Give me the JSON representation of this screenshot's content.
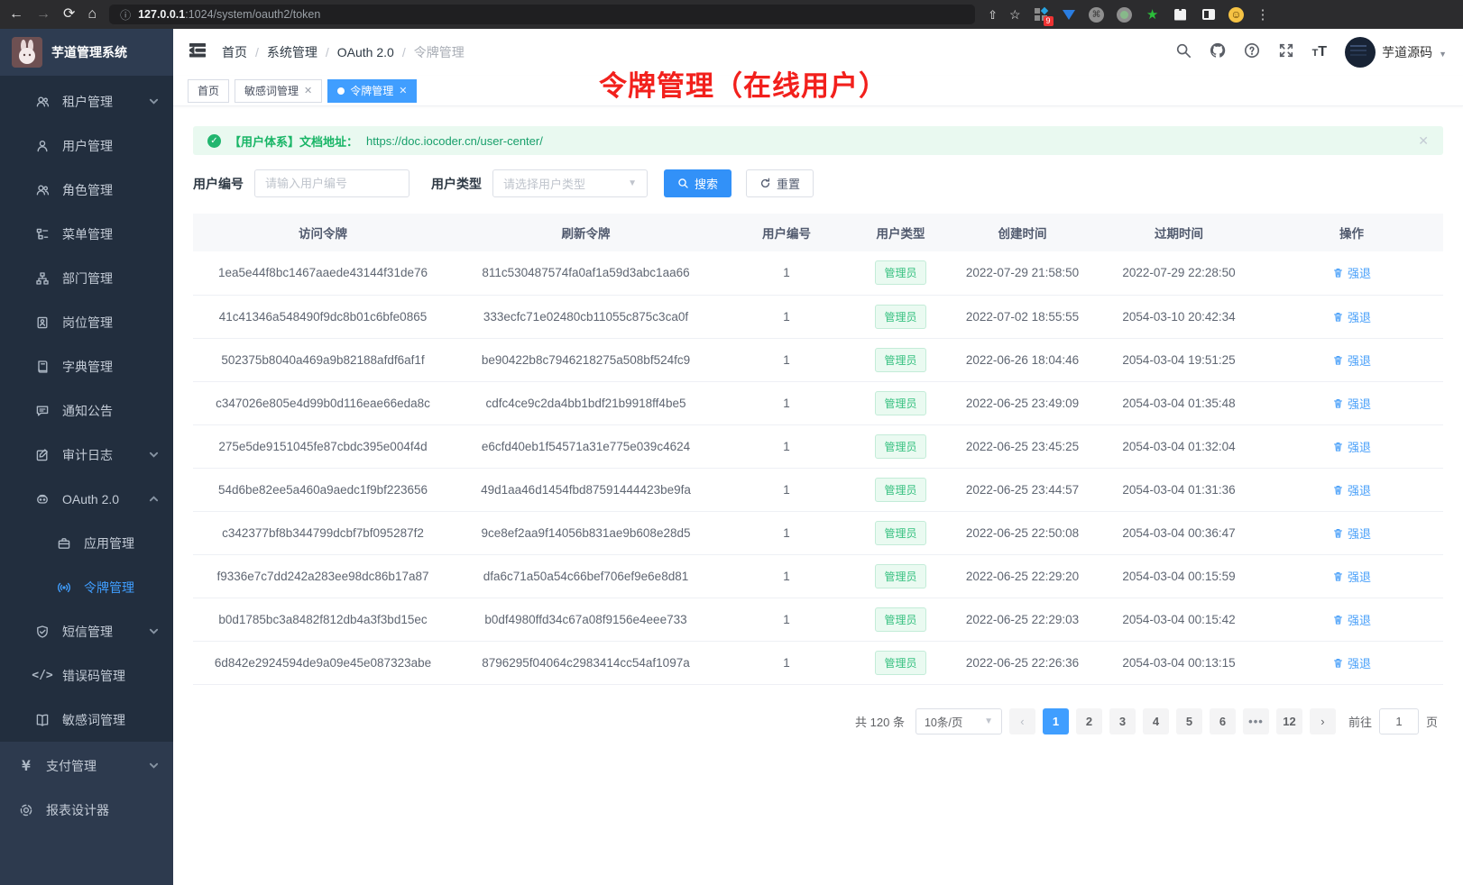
{
  "browser": {
    "url_host": "127.0.0.1",
    "url_rest": ":1024/system/oauth2/token",
    "extension_badge": "9"
  },
  "sidebar": {
    "logo_title": "芋道管理系统",
    "items": [
      {
        "label": "租户管理",
        "icon": "tenant-users-icon",
        "arrow": "down",
        "level": 1
      },
      {
        "label": "用户管理",
        "icon": "user-icon",
        "level": 1
      },
      {
        "label": "角色管理",
        "icon": "roles-icon",
        "level": 1
      },
      {
        "label": "菜单管理",
        "icon": "menu-tree-icon",
        "level": 1
      },
      {
        "label": "部门管理",
        "icon": "org-chart-icon",
        "level": 1
      },
      {
        "label": "岗位管理",
        "icon": "post-badge-icon",
        "level": 1
      },
      {
        "label": "字典管理",
        "icon": "dictionary-icon",
        "level": 1
      },
      {
        "label": "通知公告",
        "icon": "announcement-icon",
        "level": 1
      },
      {
        "label": "审计日志",
        "icon": "audit-log-icon",
        "arrow": "down",
        "level": 1
      },
      {
        "label": "OAuth 2.0",
        "icon": "oauth-robot-icon",
        "arrow": "up",
        "level": 1
      },
      {
        "label": "应用管理",
        "icon": "app-briefcase-icon",
        "level": 2
      },
      {
        "label": "令牌管理",
        "icon": "token-broadcast-icon",
        "level": 2,
        "active": true
      },
      {
        "label": "短信管理",
        "icon": "sms-shield-icon",
        "arrow": "down",
        "level": 1
      },
      {
        "label": "错误码管理",
        "icon": "error-code-icon",
        "level": 1
      },
      {
        "label": "敏感词管理",
        "icon": "sensitive-word-icon",
        "level": 1
      },
      {
        "label": "支付管理",
        "icon": "payment-yen-icon",
        "arrow": "down",
        "level": 0,
        "section": "root"
      },
      {
        "label": "报表设计器",
        "icon": "report-designer-icon",
        "level": 0,
        "section": "root"
      }
    ]
  },
  "header": {
    "breadcrumb": [
      "首页",
      "系统管理",
      "OAuth 2.0",
      "令牌管理"
    ],
    "username": "芋道源码"
  },
  "tabs": [
    {
      "label": "首页",
      "closable": false,
      "active": false
    },
    {
      "label": "敏感词管理",
      "closable": true,
      "active": false
    },
    {
      "label": "令牌管理",
      "closable": true,
      "active": true
    }
  ],
  "annotation": "令牌管理（在线用户）",
  "alert": {
    "text": "【用户体系】文档地址：",
    "link": "https://doc.iocoder.cn/user-center/"
  },
  "filters": {
    "user_id_label": "用户编号",
    "user_id_placeholder": "请输入用户编号",
    "user_type_label": "用户类型",
    "user_type_placeholder": "请选择用户类型",
    "search_label": "搜索",
    "reset_label": "重置"
  },
  "table": {
    "columns": [
      "访问令牌",
      "刷新令牌",
      "用户编号",
      "用户类型",
      "创建时间",
      "过期时间",
      "操作"
    ],
    "action_label": "强退",
    "rows": [
      {
        "access_token": "1ea5e44f8bc1467aaede43144f31de76",
        "refresh_token": "811c530487574fa0af1a59d3abc1aa66",
        "user_id": "1",
        "user_type": "管理员",
        "create_time": "2022-07-29 21:58:50",
        "expire_time": "2022-07-29 22:28:50"
      },
      {
        "access_token": "41c41346a548490f9dc8b01c6bfe0865",
        "refresh_token": "333ecfc71e02480cb11055c875c3ca0f",
        "user_id": "1",
        "user_type": "管理员",
        "create_time": "2022-07-02 18:55:55",
        "expire_time": "2054-03-10 20:42:34"
      },
      {
        "access_token": "502375b8040a469a9b82188afdf6af1f",
        "refresh_token": "be90422b8c7946218275a508bf524fc9",
        "user_id": "1",
        "user_type": "管理员",
        "create_time": "2022-06-26 18:04:46",
        "expire_time": "2054-03-04 19:51:25"
      },
      {
        "access_token": "c347026e805e4d99b0d116eae66eda8c",
        "refresh_token": "cdfc4ce9c2da4bb1bdf21b9918ff4be5",
        "user_id": "1",
        "user_type": "管理员",
        "create_time": "2022-06-25 23:49:09",
        "expire_time": "2054-03-04 01:35:48"
      },
      {
        "access_token": "275e5de9151045fe87cbdc395e004f4d",
        "refresh_token": "e6cfd40eb1f54571a31e775e039c4624",
        "user_id": "1",
        "user_type": "管理员",
        "create_time": "2022-06-25 23:45:25",
        "expire_time": "2054-03-04 01:32:04"
      },
      {
        "access_token": "54d6be82ee5a460a9aedc1f9bf223656",
        "refresh_token": "49d1aa46d1454fbd87591444423be9fa",
        "user_id": "1",
        "user_type": "管理员",
        "create_time": "2022-06-25 23:44:57",
        "expire_time": "2054-03-04 01:31:36"
      },
      {
        "access_token": "c342377bf8b344799dcbf7bf095287f2",
        "refresh_token": "9ce8ef2aa9f14056b831ae9b608e28d5",
        "user_id": "1",
        "user_type": "管理员",
        "create_time": "2022-06-25 22:50:08",
        "expire_time": "2054-03-04 00:36:47"
      },
      {
        "access_token": "f9336e7c7dd242a283ee98dc86b17a87",
        "refresh_token": "dfa6c71a50a54c66bef706ef9e6e8d81",
        "user_id": "1",
        "user_type": "管理员",
        "create_time": "2022-06-25 22:29:20",
        "expire_time": "2054-03-04 00:15:59"
      },
      {
        "access_token": "b0d1785bc3a8482f812db4a3f3bd15ec",
        "refresh_token": "b0df4980ffd34c67a08f9156e4eee733",
        "user_id": "1",
        "user_type": "管理员",
        "create_time": "2022-06-25 22:29:03",
        "expire_time": "2054-03-04 00:15:42"
      },
      {
        "access_token": "6d842e2924594de9a09e45e087323abe",
        "refresh_token": "8796295f04064c2983414cc54af1097a",
        "user_id": "1",
        "user_type": "管理员",
        "create_time": "2022-06-25 22:26:36",
        "expire_time": "2054-03-04 00:13:15"
      }
    ]
  },
  "pagination": {
    "total": "共 120 条",
    "page_size": "10条/页",
    "pages": [
      "1",
      "2",
      "3",
      "4",
      "5",
      "6",
      "...",
      "12"
    ],
    "active_page": "1",
    "goto_label": "前往",
    "goto_value": "1",
    "page_suffix": "页"
  },
  "colors": {
    "accent_blue": "#409eff",
    "success_green": "#18b566",
    "annotation_red": "#f2201c",
    "sidebar_dark": "#222e3e",
    "sidebar_light": "#2d3a4e"
  }
}
